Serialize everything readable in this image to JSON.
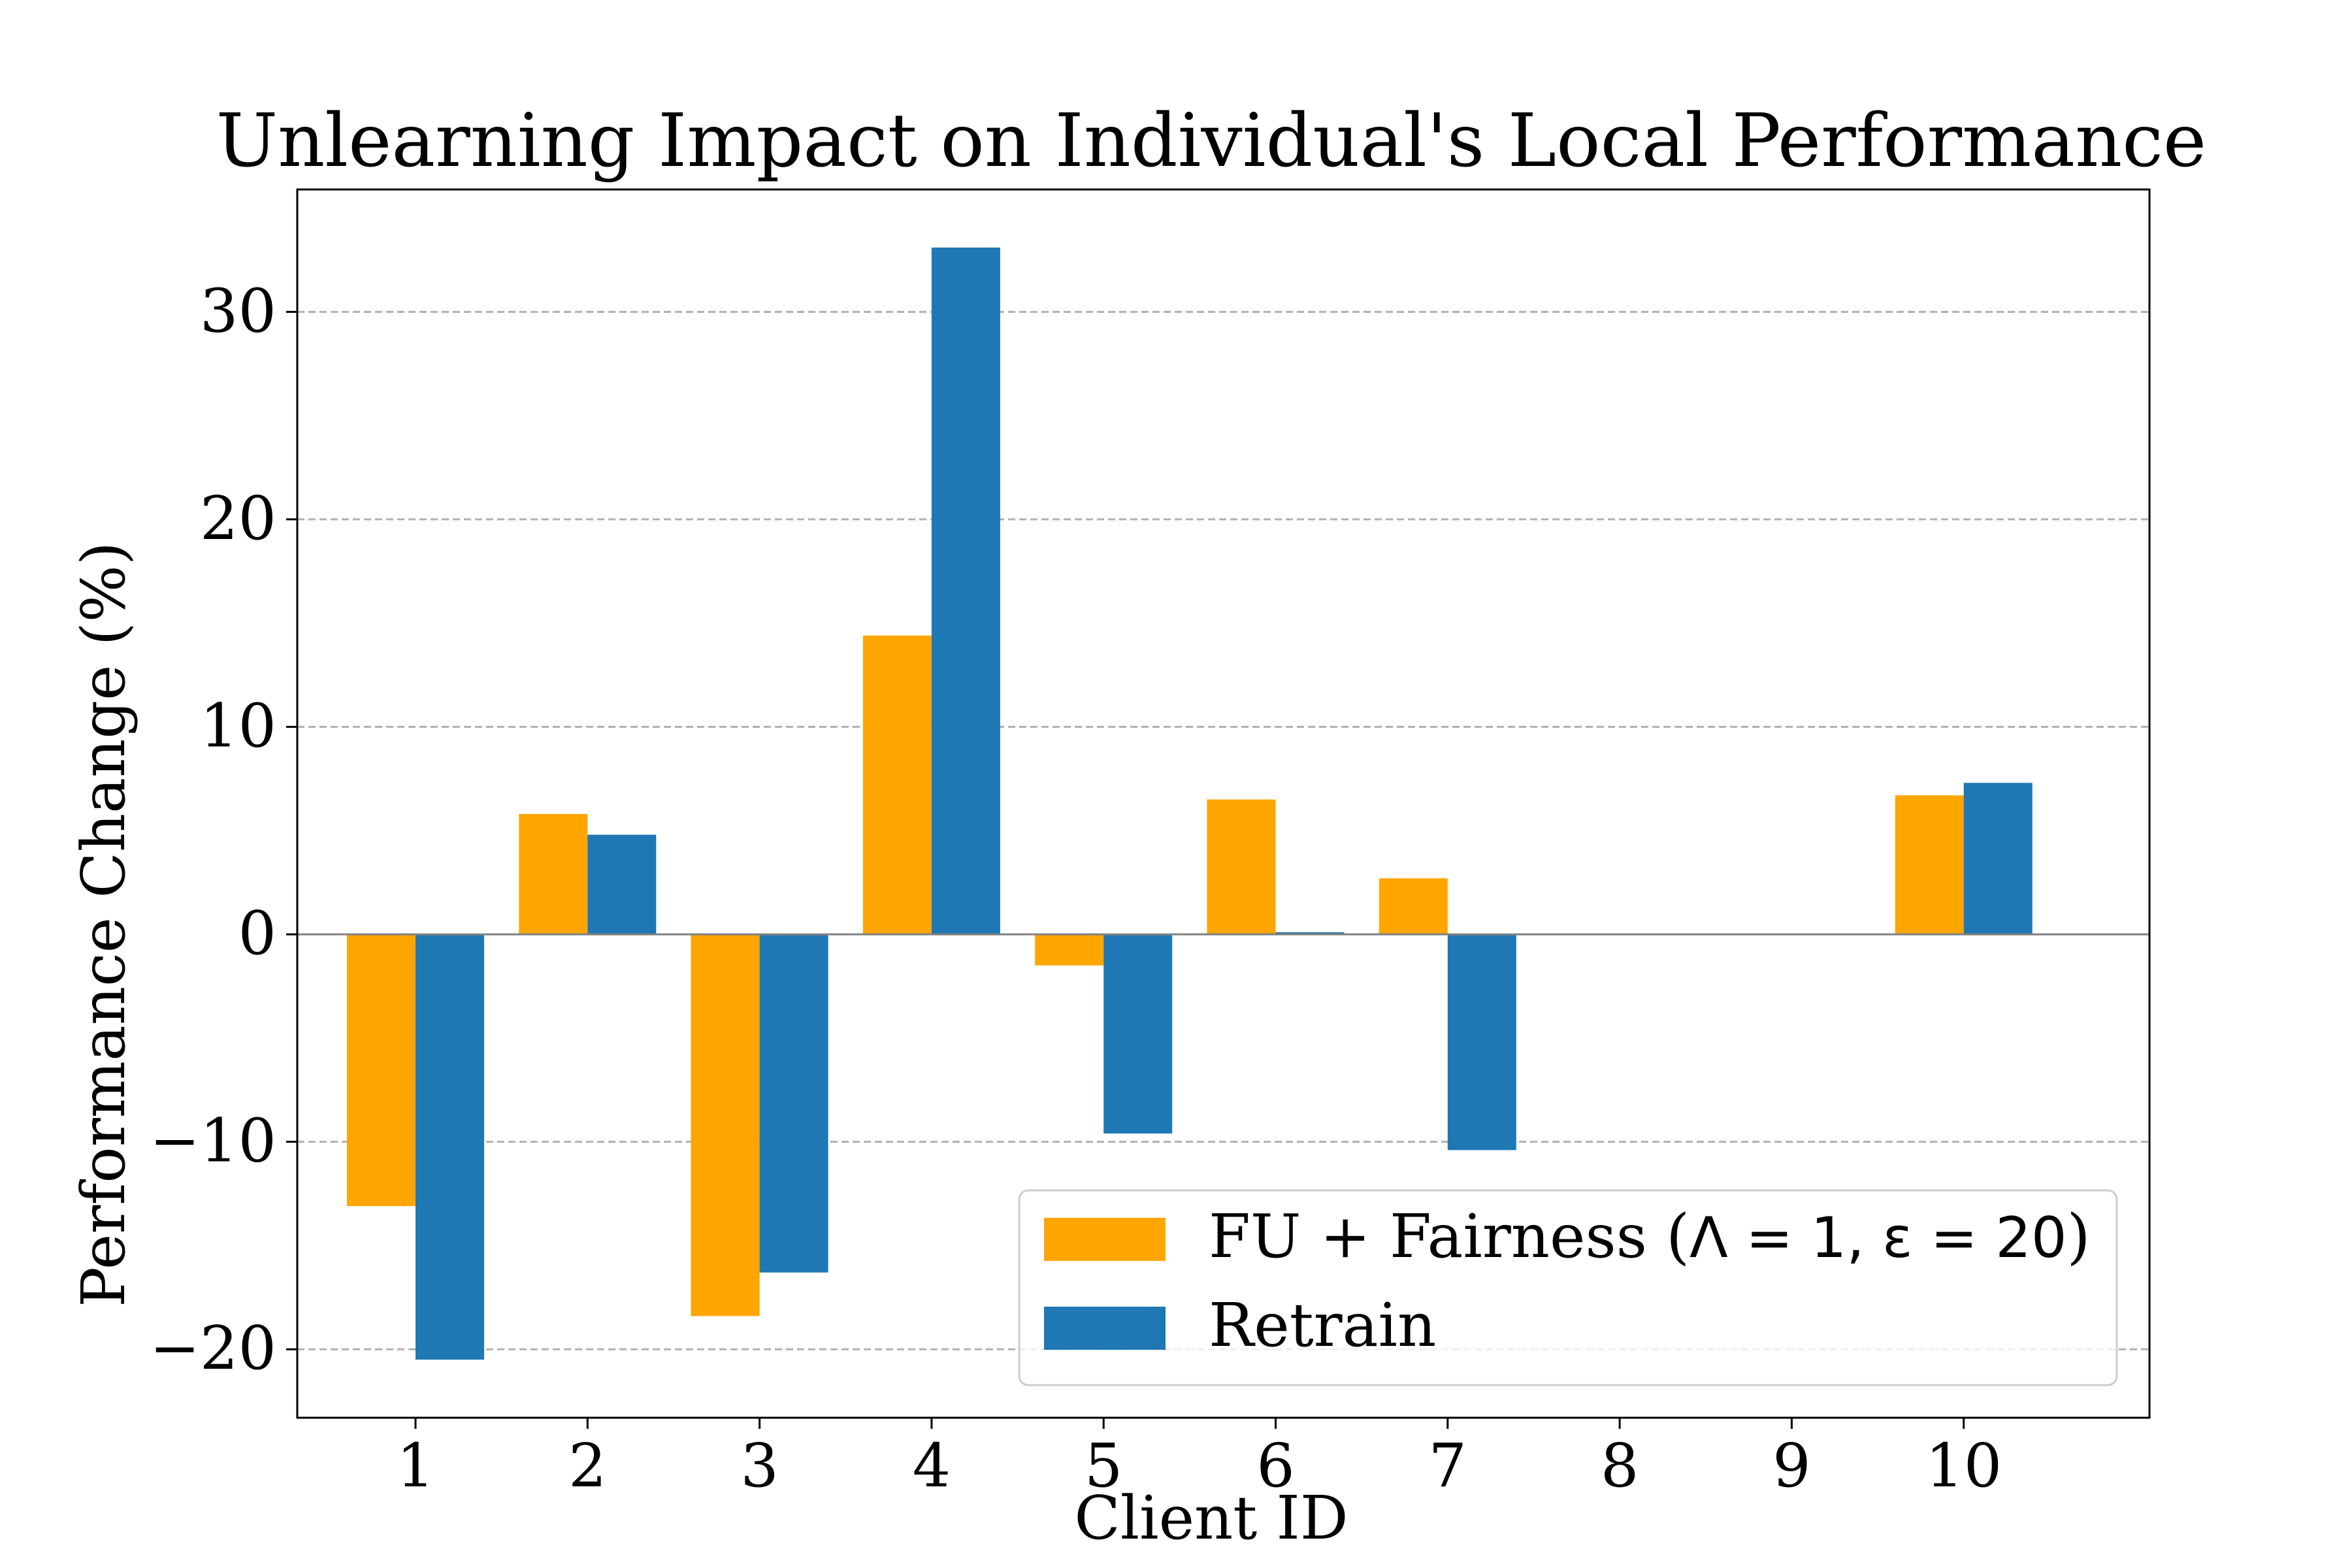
{
  "chart_data": {
    "type": "bar",
    "title": "Unlearning Impact on Individual's Local Performance",
    "xlabel": "Client ID",
    "ylabel": "Performance Change (%)",
    "categories": [
      "1",
      "2",
      "3",
      "4",
      "5",
      "6",
      "7",
      "8",
      "9",
      "10"
    ],
    "series": [
      {
        "name": "FU + Fairness (Λ = 1, ε = 20)",
        "color": "#FFA500",
        "values": [
          -13.1,
          5.8,
          -18.4,
          14.4,
          -1.5,
          6.5,
          2.7,
          0.0,
          0.0,
          6.7
        ]
      },
      {
        "name": "Retrain",
        "color": "#1F77B4",
        "values": [
          -20.5,
          4.8,
          -16.3,
          33.1,
          -9.6,
          0.1,
          -10.4,
          0.0,
          0.0,
          7.3
        ]
      }
    ],
    "ylim": [
      -23.3,
      35.9
    ],
    "yticks": [
      -20,
      -10,
      0,
      10,
      20,
      30
    ],
    "ytick_labels": [
      "−20",
      "−10",
      "0",
      "10",
      "20",
      "30"
    ],
    "grid": "y-dashed",
    "legend": {
      "placement": "lower-right",
      "entries": [
        {
          "prefix": "FU + Fairness (",
          "math": "Λ = 1, ε = 20",
          "suffix": ")"
        },
        {
          "prefix": "Retrain",
          "math": "",
          "suffix": ""
        }
      ]
    },
    "zero_line": true
  }
}
